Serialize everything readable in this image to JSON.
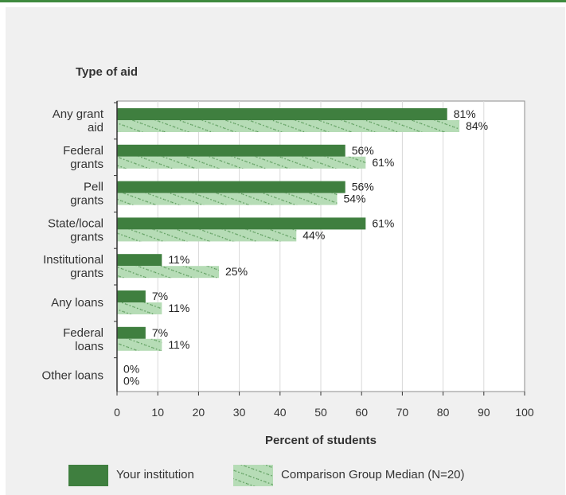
{
  "chart_data": {
    "type": "bar",
    "orientation": "horizontal",
    "title": "Type of aid",
    "xlabel": "Percent of students",
    "ylabel": "",
    "xlim": [
      0,
      100
    ],
    "x_ticks": [
      0,
      10,
      20,
      30,
      40,
      50,
      60,
      70,
      80,
      90,
      100
    ],
    "categories": [
      [
        "Any grant",
        "aid"
      ],
      [
        "Federal",
        "grants"
      ],
      [
        "Pell",
        "grants"
      ],
      [
        "State/local",
        "grants"
      ],
      [
        "Institutional",
        "grants"
      ],
      [
        "Any loans"
      ],
      [
        "Federal",
        "loans"
      ],
      [
        "Other loans"
      ]
    ],
    "series": [
      {
        "name": "Your institution",
        "color": "#3f7f3f",
        "pattern": "solid",
        "values": [
          81,
          56,
          56,
          61,
          11,
          7,
          7,
          0
        ],
        "labels": [
          "81%",
          "56%",
          "56%",
          "61%",
          "11%",
          "7%",
          "7%",
          "0%"
        ]
      },
      {
        "name": "Comparison Group Median (N=20)",
        "color": "#b6dcb6",
        "pattern": "hatched",
        "values": [
          84,
          61,
          54,
          44,
          25,
          11,
          11,
          0
        ],
        "labels": [
          "84%",
          "61%",
          "54%",
          "44%",
          "25%",
          "11%",
          "11%",
          "0%"
        ]
      }
    ],
    "grid": "vertical",
    "legend": "bottom"
  }
}
